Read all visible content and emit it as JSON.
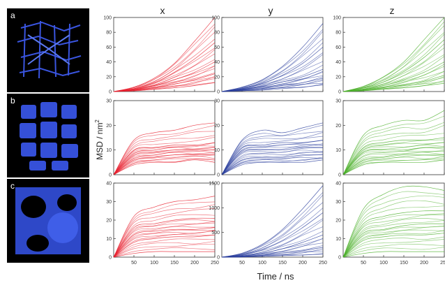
{
  "figure": {
    "panel_letters": [
      "a",
      "b",
      "c"
    ],
    "column_titles": [
      "x",
      "y",
      "z"
    ],
    "y_axis_label": "MSD / nm",
    "y_axis_label_sup": "2",
    "x_axis_label": "Time / ns",
    "colors": {
      "x": "#e8202e",
      "y": "#2b3f9e",
      "z": "#4cb02c",
      "image_bg": "#000000",
      "image_blob": "#3a55e0"
    }
  },
  "chart_data": [
    {
      "type": "line",
      "column": "x",
      "row": "a",
      "xlim": [
        0,
        250
      ],
      "ylim": [
        0,
        100
      ],
      "x_ticks": [],
      "y_ticks": [
        0,
        20,
        40,
        60,
        80,
        100
      ],
      "x": [
        0,
        50,
        100,
        150,
        200,
        250
      ],
      "series": [
        {
          "values": [
            0,
            6,
            18,
            38,
            68,
            100
          ]
        },
        {
          "values": [
            0,
            4,
            12,
            26,
            44,
            66
          ]
        },
        {
          "values": [
            0,
            3,
            8,
            16,
            26,
            40
          ]
        },
        {
          "values": [
            0,
            2,
            5,
            10,
            16,
            24
          ]
        },
        {
          "values": [
            0,
            1,
            3,
            5,
            8,
            12
          ]
        }
      ]
    },
    {
      "type": "line",
      "column": "y",
      "row": "a",
      "xlim": [
        0,
        250
      ],
      "ylim": [
        0,
        100
      ],
      "x_ticks": [],
      "y_ticks": [
        0,
        20,
        40,
        60,
        80,
        100
      ],
      "x": [
        0,
        50,
        100,
        150,
        200,
        250
      ],
      "series": [
        {
          "values": [
            0,
            6,
            16,
            34,
            60,
            92
          ]
        },
        {
          "values": [
            0,
            4,
            11,
            22,
            38,
            60
          ]
        },
        {
          "values": [
            0,
            3,
            7,
            13,
            20,
            30
          ]
        },
        {
          "values": [
            0,
            2,
            4,
            8,
            12,
            18
          ]
        },
        {
          "values": [
            0,
            1,
            2,
            4,
            6,
            9
          ]
        }
      ]
    },
    {
      "type": "line",
      "column": "z",
      "row": "a",
      "xlim": [
        0,
        250
      ],
      "ylim": [
        0,
        100
      ],
      "x_ticks": [],
      "y_ticks": [
        0,
        20,
        40,
        60,
        80,
        100
      ],
      "x": [
        0,
        50,
        100,
        150,
        200,
        250
      ],
      "series": [
        {
          "values": [
            0,
            7,
            20,
            40,
            70,
            100
          ]
        },
        {
          "values": [
            0,
            5,
            13,
            27,
            46,
            70
          ]
        },
        {
          "values": [
            0,
            3,
            8,
            16,
            26,
            40
          ]
        },
        {
          "values": [
            0,
            2,
            5,
            9,
            14,
            22
          ]
        },
        {
          "values": [
            0,
            1,
            3,
            5,
            8,
            11
          ]
        }
      ]
    },
    {
      "type": "line",
      "column": "x",
      "row": "b",
      "xlim": [
        0,
        250
      ],
      "ylim": [
        0,
        30
      ],
      "x_ticks": [],
      "y_ticks": [
        0,
        10,
        20,
        30
      ],
      "x": [
        0,
        50,
        100,
        150,
        200,
        250
      ],
      "series": [
        {
          "values": [
            0,
            14,
            17,
            18,
            20,
            21
          ]
        },
        {
          "values": [
            0,
            10,
            11,
            12,
            12,
            13
          ]
        },
        {
          "values": [
            0,
            8,
            9,
            10,
            10,
            10
          ]
        },
        {
          "values": [
            0,
            6,
            7,
            8,
            8,
            8
          ]
        },
        {
          "values": [
            0,
            4,
            5,
            5,
            6,
            5
          ]
        }
      ]
    },
    {
      "type": "line",
      "column": "y",
      "row": "b",
      "xlim": [
        0,
        250
      ],
      "ylim": [
        0,
        30
      ],
      "x_ticks": [],
      "y_ticks": [
        0,
        10,
        20,
        30
      ],
      "x": [
        0,
        50,
        100,
        150,
        200,
        250
      ],
      "series": [
        {
          "values": [
            0,
            14,
            18,
            17,
            19,
            21
          ]
        },
        {
          "values": [
            0,
            11,
            12,
            13,
            13,
            14
          ]
        },
        {
          "values": [
            0,
            9,
            10,
            10,
            11,
            11
          ]
        },
        {
          "values": [
            0,
            6,
            7,
            7,
            8,
            8
          ]
        },
        {
          "values": [
            0,
            4,
            5,
            5,
            5,
            6
          ]
        }
      ]
    },
    {
      "type": "line",
      "column": "z",
      "row": "b",
      "xlim": [
        0,
        250
      ],
      "ylim": [
        0,
        30
      ],
      "x_ticks": [],
      "y_ticks": [
        0,
        10,
        20,
        30
      ],
      "x": [
        0,
        50,
        100,
        150,
        200,
        250
      ],
      "series": [
        {
          "values": [
            0,
            16,
            20,
            22,
            22,
            26
          ]
        },
        {
          "values": [
            0,
            11,
            13,
            14,
            14,
            15
          ]
        },
        {
          "values": [
            0,
            9,
            10,
            10,
            11,
            11
          ]
        },
        {
          "values": [
            0,
            6,
            7,
            8,
            8,
            8
          ]
        },
        {
          "values": [
            0,
            4,
            5,
            5,
            5,
            6
          ]
        }
      ]
    },
    {
      "type": "line",
      "column": "x",
      "row": "c",
      "xlim": [
        0,
        250
      ],
      "ylim": [
        0,
        40
      ],
      "x_ticks": [
        50,
        100,
        150,
        200,
        250
      ],
      "y_ticks": [
        0,
        10,
        20,
        30,
        40
      ],
      "x": [
        0,
        50,
        100,
        150,
        200,
        250
      ],
      "series": [
        {
          "values": [
            0,
            22,
            27,
            30,
            31,
            33
          ]
        },
        {
          "values": [
            0,
            16,
            18,
            20,
            21,
            21
          ]
        },
        {
          "values": [
            0,
            12,
            14,
            15,
            15,
            16
          ]
        },
        {
          "values": [
            0,
            8,
            10,
            11,
            11,
            12
          ]
        },
        {
          "values": [
            0,
            2,
            3,
            3,
            3,
            3
          ]
        }
      ]
    },
    {
      "type": "line",
      "column": "y",
      "row": "c",
      "xlim": [
        0,
        250
      ],
      "ylim": [
        0,
        1500
      ],
      "x_ticks": [
        50,
        100,
        150,
        200,
        250
      ],
      "y_ticks": [
        0,
        500,
        1000,
        1500
      ],
      "x": [
        0,
        50,
        100,
        150,
        200,
        250
      ],
      "series": [
        {
          "values": [
            0,
            80,
            260,
            560,
            980,
            1450
          ]
        },
        {
          "values": [
            0,
            50,
            160,
            340,
            600,
            900
          ]
        },
        {
          "values": [
            0,
            25,
            80,
            170,
            300,
            450
          ]
        },
        {
          "values": [
            0,
            12,
            40,
            80,
            130,
            200
          ]
        },
        {
          "values": [
            0,
            5,
            15,
            30,
            45,
            60
          ]
        }
      ]
    },
    {
      "type": "line",
      "column": "z",
      "row": "c",
      "xlim": [
        0,
        250
      ],
      "ylim": [
        0,
        40
      ],
      "x_ticks": [
        50,
        100,
        150,
        200,
        250
      ],
      "y_ticks": [
        0,
        10,
        20,
        30,
        40
      ],
      "x": [
        0,
        50,
        100,
        150,
        200,
        250
      ],
      "series": [
        {
          "values": [
            0,
            26,
            34,
            38,
            38,
            36
          ]
        },
        {
          "values": [
            0,
            18,
            22,
            24,
            25,
            25
          ]
        },
        {
          "values": [
            0,
            13,
            15,
            17,
            18,
            18
          ]
        },
        {
          "values": [
            0,
            9,
            11,
            12,
            12,
            13
          ]
        },
        {
          "values": [
            0,
            2,
            3,
            3,
            3,
            3
          ]
        }
      ]
    }
  ]
}
